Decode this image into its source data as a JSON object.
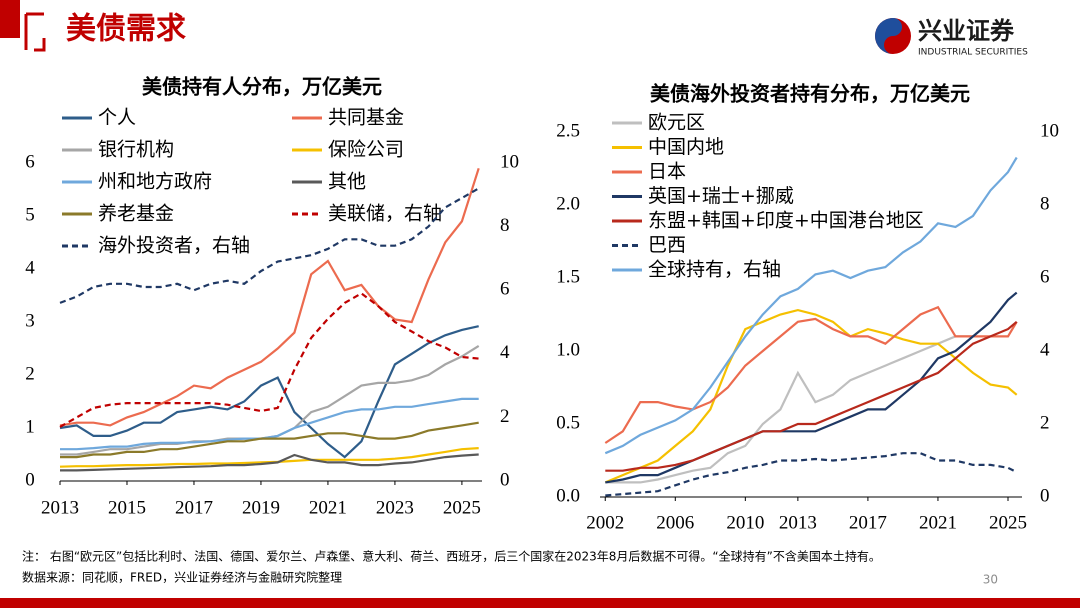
{
  "header": {
    "title": "美债需求",
    "logo_cn": "兴业证券",
    "logo_en": "INDUSTRIAL SECURITIES"
  },
  "chart_data": [
    {
      "type": "line",
      "title": "美债持有人分布，万亿美元",
      "x": [
        2013,
        2013.5,
        2014,
        2014.5,
        2015,
        2015.5,
        2016,
        2016.5,
        2017,
        2017.5,
        2018,
        2018.5,
        2019,
        2019.5,
        2020,
        2020.5,
        2021,
        2021.5,
        2022,
        2022.5,
        2023,
        2023.5,
        2024,
        2024.5,
        2025,
        2025.5
      ],
      "xlim": [
        2013,
        2025.6
      ],
      "xticks": [
        2013,
        2015,
        2017,
        2019,
        2021,
        2023,
        2025
      ],
      "ylim": [
        0,
        6
      ],
      "yticks": [
        0,
        1,
        2,
        3,
        4,
        5,
        6
      ],
      "y2lim": [
        0,
        10
      ],
      "y2ticks": [
        0,
        2,
        4,
        6,
        8,
        10
      ],
      "series": [
        {
          "name": "个人",
          "color": "#2e5d8a",
          "values": [
            1.0,
            1.05,
            0.85,
            0.85,
            0.95,
            1.1,
            1.1,
            1.3,
            1.35,
            1.4,
            1.35,
            1.5,
            1.8,
            1.95,
            1.3,
            1.0,
            0.7,
            0.45,
            0.75,
            1.5,
            2.2,
            2.4,
            2.6,
            2.75,
            2.85,
            2.92
          ]
        },
        {
          "name": "共同基金",
          "color": "#ec6b4f",
          "values": [
            1.05,
            1.1,
            1.1,
            1.05,
            1.2,
            1.3,
            1.45,
            1.6,
            1.8,
            1.75,
            1.95,
            2.1,
            2.25,
            2.5,
            2.8,
            3.9,
            4.15,
            3.6,
            3.7,
            3.3,
            3.05,
            3.0,
            3.8,
            4.5,
            4.9,
            5.9
          ]
        },
        {
          "name": "银行机构",
          "color": "#a6a6a6",
          "values": [
            0.5,
            0.5,
            0.55,
            0.6,
            0.6,
            0.65,
            0.7,
            0.7,
            0.75,
            0.75,
            0.8,
            0.8,
            0.8,
            0.85,
            1.0,
            1.3,
            1.4,
            1.6,
            1.8,
            1.85,
            1.85,
            1.9,
            2.0,
            2.2,
            2.35,
            2.55
          ]
        },
        {
          "name": "保险公司",
          "color": "#f5c000",
          "values": [
            0.27,
            0.28,
            0.28,
            0.29,
            0.3,
            0.3,
            0.31,
            0.32,
            0.32,
            0.33,
            0.33,
            0.34,
            0.35,
            0.36,
            0.38,
            0.4,
            0.4,
            0.4,
            0.4,
            0.4,
            0.42,
            0.45,
            0.5,
            0.55,
            0.6,
            0.62
          ]
        },
        {
          "name": "州和地方政府",
          "color": "#6fa8dc",
          "values": [
            0.6,
            0.6,
            0.62,
            0.65,
            0.65,
            0.7,
            0.72,
            0.72,
            0.73,
            0.75,
            0.78,
            0.8,
            0.8,
            0.85,
            1.0,
            1.1,
            1.2,
            1.3,
            1.35,
            1.35,
            1.4,
            1.4,
            1.45,
            1.5,
            1.55,
            1.55
          ]
        },
        {
          "name": "其他",
          "color": "#595959",
          "values": [
            0.2,
            0.2,
            0.21,
            0.22,
            0.23,
            0.24,
            0.25,
            0.26,
            0.27,
            0.28,
            0.3,
            0.3,
            0.32,
            0.35,
            0.49,
            0.4,
            0.35,
            0.35,
            0.3,
            0.3,
            0.33,
            0.35,
            0.4,
            0.45,
            0.48,
            0.5
          ]
        },
        {
          "name": "养老基金",
          "color": "#8b7a2a",
          "values": [
            0.45,
            0.45,
            0.5,
            0.5,
            0.55,
            0.55,
            0.6,
            0.6,
            0.65,
            0.7,
            0.75,
            0.75,
            0.8,
            0.8,
            0.8,
            0.85,
            0.9,
            0.9,
            0.85,
            0.8,
            0.8,
            0.85,
            0.95,
            1.0,
            1.05,
            1.1
          ]
        },
        {
          "name": "美联储，右轴",
          "color": "#c00000",
          "dashed": true,
          "axis": "y2",
          "values": [
            1.7,
            2.0,
            2.3,
            2.4,
            2.45,
            2.45,
            2.45,
            2.45,
            2.45,
            2.45,
            2.4,
            2.3,
            2.2,
            2.3,
            3.5,
            4.5,
            5.1,
            5.6,
            5.9,
            5.5,
            5.0,
            4.7,
            4.4,
            4.2,
            3.9,
            3.85
          ]
        },
        {
          "name": "海外投资者，右轴",
          "color": "#1f3864",
          "dashed": true,
          "axis": "y2",
          "values": [
            5.6,
            5.8,
            6.1,
            6.2,
            6.2,
            6.1,
            6.1,
            6.2,
            6.0,
            6.2,
            6.3,
            6.2,
            6.6,
            6.9,
            7.0,
            7.1,
            7.3,
            7.6,
            7.6,
            7.4,
            7.4,
            7.6,
            8.0,
            8.6,
            8.9,
            9.2
          ]
        }
      ]
    },
    {
      "type": "line",
      "title": "美债海外投资者持有分布，万亿美元",
      "x": [
        2002,
        2003,
        2004,
        2005,
        2006,
        2007,
        2008,
        2009,
        2010,
        2011,
        2012,
        2013,
        2014,
        2015,
        2016,
        2017,
        2018,
        2019,
        2020,
        2021,
        2022,
        2023,
        2024,
        2025,
        2025.5
      ],
      "xlim": [
        2001.7,
        2025.8
      ],
      "xticks": [
        2002,
        2006,
        2010,
        2013,
        2017,
        2021,
        2025
      ],
      "ylim": [
        0,
        2.5
      ],
      "yticks": [
        {
          "value": 0,
          "label": "0.0"
        },
        0.5,
        {
          "value": 1,
          "label": "1.0"
        },
        1.5,
        {
          "value": 2,
          "label": "2.0"
        },
        2.5
      ],
      "y2lim": [
        0,
        10
      ],
      "y2ticks": [
        0,
        2,
        4,
        6,
        8,
        10
      ],
      "series": [
        {
          "name": "欧元区",
          "color": "#bfbfbf",
          "values": [
            0.1,
            0.1,
            0.1,
            0.12,
            0.15,
            0.18,
            0.2,
            0.3,
            0.35,
            0.5,
            0.6,
            0.85,
            0.65,
            0.7,
            0.8,
            0.85,
            0.9,
            0.95,
            1.0,
            1.05,
            1.1,
            1.1,
            null,
            null,
            null
          ]
        },
        {
          "name": "中国内地",
          "color": "#f5c000",
          "values": [
            0.1,
            0.15,
            0.2,
            0.25,
            0.35,
            0.45,
            0.6,
            0.9,
            1.15,
            1.2,
            1.25,
            1.28,
            1.25,
            1.2,
            1.1,
            1.15,
            1.12,
            1.08,
            1.05,
            1.05,
            0.95,
            0.85,
            0.77,
            0.75,
            0.7
          ]
        },
        {
          "name": "日本",
          "color": "#ec6b4f",
          "values": [
            0.37,
            0.45,
            0.65,
            0.65,
            0.62,
            0.6,
            0.65,
            0.75,
            0.9,
            1.0,
            1.1,
            1.2,
            1.22,
            1.15,
            1.1,
            1.1,
            1.05,
            1.15,
            1.25,
            1.3,
            1.1,
            1.1,
            1.1,
            1.1,
            1.2
          ]
        },
        {
          "name": "英国+瑞士+挪威",
          "color": "#1f3864",
          "values": [
            0.1,
            0.12,
            0.15,
            0.15,
            0.2,
            0.25,
            0.3,
            0.35,
            0.4,
            0.45,
            0.45,
            0.45,
            0.45,
            0.5,
            0.55,
            0.6,
            0.6,
            0.7,
            0.8,
            0.95,
            1.0,
            1.1,
            1.2,
            1.35,
            1.4
          ]
        },
        {
          "name": "东盟+韩国+印度+中国港台地区",
          "color": "#b8291c",
          "values": [
            0.18,
            0.18,
            0.2,
            0.2,
            0.22,
            0.25,
            0.3,
            0.35,
            0.4,
            0.45,
            0.45,
            0.5,
            0.5,
            0.55,
            0.6,
            0.65,
            0.7,
            0.75,
            0.8,
            0.85,
            0.95,
            1.05,
            1.1,
            1.15,
            1.2
          ]
        },
        {
          "name": "巴西",
          "color": "#1f3864",
          "dashed": true,
          "values": [
            0.01,
            0.02,
            0.03,
            0.04,
            0.08,
            0.12,
            0.15,
            0.17,
            0.2,
            0.22,
            0.25,
            0.25,
            0.26,
            0.25,
            0.26,
            0.27,
            0.28,
            0.3,
            0.3,
            0.25,
            0.25,
            0.22,
            0.22,
            0.2,
            0.17
          ]
        },
        {
          "name": "全球持有，右轴",
          "color": "#6fa8dc",
          "axis": "y2",
          "values": [
            1.2,
            1.4,
            1.7,
            1.9,
            2.1,
            2.4,
            3.0,
            3.7,
            4.4,
            5.0,
            5.5,
            5.7,
            6.1,
            6.2,
            6.0,
            6.2,
            6.3,
            6.7,
            7.0,
            7.5,
            7.4,
            7.7,
            8.4,
            8.9,
            9.3
          ]
        }
      ]
    }
  ],
  "footer": {
    "note": "注：  右图“欧元区”包括比利时、法国、德国、爱尔兰、卢森堡、意大利、荷兰、西班牙，后三个国家在2023年8月后数据不可得。“全球持有”不含美国本土持有。",
    "source": "数据来源：同花顺，FRED，兴业证券经济与金融研究院整理",
    "page": "30"
  }
}
